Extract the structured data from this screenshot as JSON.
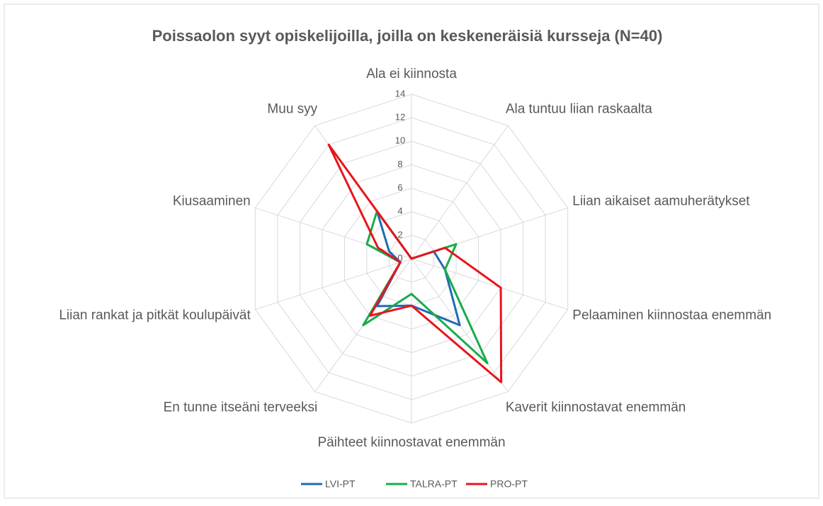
{
  "chart_data": {
    "type": "radar",
    "title": "Poissaolon syyt opiskelijoilla, joilla on keskeneräisiä kursseja (N=40)",
    "categories": [
      "Ala ei kiinnosta",
      "Ala tuntuu liian raskaalta",
      "Liian aikaiset aamuherätykset",
      "Pelaaminen kiinnostaa enemmän",
      "Kaverit kiinnostavat enemmän",
      "Päihteet kiinnostavat enemmän",
      "En tunne itseäni terveeksi",
      "Liian rankat ja pitkät koulupäivät",
      "Kiusaaminen",
      "Muu syy"
    ],
    "series": [
      {
        "name": "LVI-PT",
        "color": "#1f6bb5",
        "values": [
          0,
          0,
          2,
          3,
          7,
          4,
          5,
          1,
          2,
          5
        ]
      },
      {
        "name": "TALRA-PT",
        "color": "#1aab4b",
        "values": [
          0,
          0,
          4,
          3,
          11,
          3,
          7,
          1,
          4,
          5
        ]
      },
      {
        "name": "PRO-PT",
        "color": "#e8141b",
        "values": [
          0,
          0,
          3,
          8,
          13,
          4,
          6,
          1,
          3,
          12
        ]
      }
    ],
    "ylim": [
      0,
      14
    ],
    "yticks": [
      0,
      2,
      4,
      6,
      8,
      10,
      12,
      14
    ],
    "grid": true,
    "legend": "bottom"
  }
}
